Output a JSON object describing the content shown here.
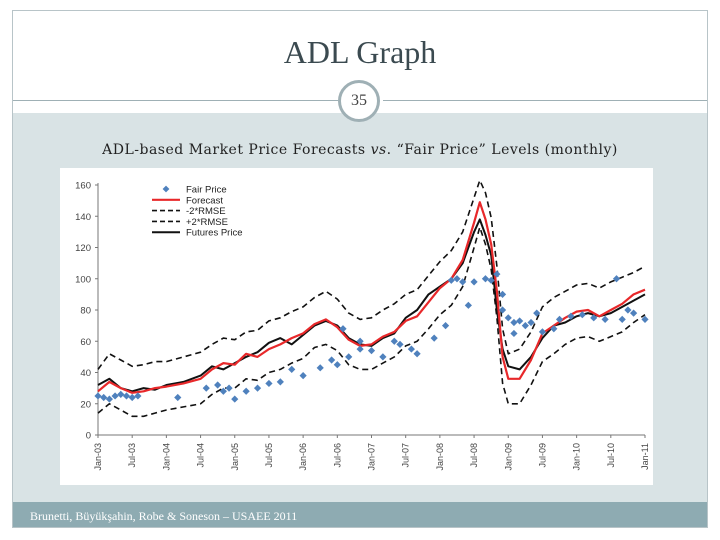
{
  "slide": {
    "title": "ADL Graph",
    "page_number": "35",
    "subtitle_prefix": "ADL-based Market Price Forecasts ",
    "subtitle_vs": "vs",
    "subtitle_suffix": ". “Fair Price” Levels (monthly)",
    "footer": "Brunetti, Büyükşahin, Robe & Soneson – USAEE 2011"
  },
  "colors": {
    "forecast": "#e8282a",
    "rmse": "#111111",
    "futures": "#111111",
    "fair": "#4f81bd",
    "band": "#d9e3e5",
    "footer": "#8eabb2"
  },
  "chart_data": {
    "type": "line",
    "ylim": [
      0,
      160
    ],
    "yticks": [
      "0",
      "20",
      "40",
      "60",
      "80",
      "100",
      "120",
      "140",
      "160"
    ],
    "x_start": "Jan-03",
    "x_end": "Jan-11",
    "xticks": [
      "Jan-03",
      "Jul-03",
      "Jan-04",
      "Jul-04",
      "Jan-05",
      "Jul-05",
      "Jan-06",
      "Jul-06",
      "Jan-07",
      "Jul-07",
      "Jan-08",
      "Jul-08",
      "Jan-09",
      "Jul-09",
      "Jan-10",
      "Jul-10",
      "Jan-11"
    ],
    "legend": [
      "Fair Price",
      "Forecast",
      "-2*RMSE",
      "+2*RMSE",
      "Futures Price"
    ],
    "legend_position": "top-left",
    "futures": [
      [
        0,
        32
      ],
      [
        2,
        36
      ],
      [
        4,
        30
      ],
      [
        6,
        28
      ],
      [
        8,
        30
      ],
      [
        10,
        29
      ],
      [
        12,
        32
      ],
      [
        15,
        34
      ],
      [
        18,
        38
      ],
      [
        20,
        44
      ],
      [
        22,
        42
      ],
      [
        24,
        46
      ],
      [
        26,
        50
      ],
      [
        28,
        53
      ],
      [
        30,
        59
      ],
      [
        32,
        62
      ],
      [
        34,
        58
      ],
      [
        36,
        64
      ],
      [
        38,
        70
      ],
      [
        40,
        73
      ],
      [
        42,
        70
      ],
      [
        44,
        62
      ],
      [
        46,
        58
      ],
      [
        48,
        57
      ],
      [
        50,
        62
      ],
      [
        52,
        65
      ],
      [
        54,
        75
      ],
      [
        56,
        80
      ],
      [
        58,
        90
      ],
      [
        60,
        95
      ],
      [
        62,
        100
      ],
      [
        64,
        110
      ],
      [
        66,
        130
      ],
      [
        67,
        138
      ],
      [
        68,
        128
      ],
      [
        69,
        115
      ],
      [
        70,
        80
      ],
      [
        71,
        55
      ],
      [
        72,
        44
      ],
      [
        74,
        42
      ],
      [
        76,
        50
      ],
      [
        78,
        62
      ],
      [
        80,
        70
      ],
      [
        82,
        72
      ],
      [
        84,
        76
      ],
      [
        86,
        78
      ],
      [
        88,
        76
      ],
      [
        90,
        78
      ],
      [
        92,
        82
      ],
      [
        94,
        86
      ],
      [
        96,
        90
      ]
    ],
    "forecast": [
      [
        0,
        28
      ],
      [
        2,
        34
      ],
      [
        4,
        30
      ],
      [
        6,
        27
      ],
      [
        8,
        28
      ],
      [
        10,
        30
      ],
      [
        12,
        31
      ],
      [
        15,
        33
      ],
      [
        18,
        36
      ],
      [
        20,
        42
      ],
      [
        22,
        46
      ],
      [
        24,
        45
      ],
      [
        26,
        52
      ],
      [
        28,
        50
      ],
      [
        30,
        55
      ],
      [
        32,
        58
      ],
      [
        34,
        62
      ],
      [
        36,
        65
      ],
      [
        38,
        71
      ],
      [
        40,
        74
      ],
      [
        42,
        69
      ],
      [
        44,
        61
      ],
      [
        46,
        57
      ],
      [
        48,
        58
      ],
      [
        50,
        63
      ],
      [
        52,
        66
      ],
      [
        54,
        73
      ],
      [
        56,
        76
      ],
      [
        58,
        85
      ],
      [
        60,
        94
      ],
      [
        62,
        100
      ],
      [
        64,
        112
      ],
      [
        66,
        136
      ],
      [
        67,
        149
      ],
      [
        68,
        138
      ],
      [
        69,
        122
      ],
      [
        70,
        92
      ],
      [
        71,
        50
      ],
      [
        72,
        36
      ],
      [
        74,
        36
      ],
      [
        76,
        48
      ],
      [
        78,
        65
      ],
      [
        80,
        70
      ],
      [
        82,
        75
      ],
      [
        84,
        79
      ],
      [
        86,
        80
      ],
      [
        88,
        76
      ],
      [
        90,
        80
      ],
      [
        92,
        84
      ],
      [
        94,
        90
      ],
      [
        96,
        93
      ]
    ],
    "rmse_upper": [
      [
        0,
        42
      ],
      [
        2,
        52
      ],
      [
        4,
        48
      ],
      [
        6,
        44
      ],
      [
        8,
        45
      ],
      [
        10,
        47
      ],
      [
        12,
        47
      ],
      [
        15,
        50
      ],
      [
        18,
        53
      ],
      [
        20,
        58
      ],
      [
        22,
        62
      ],
      [
        24,
        61
      ],
      [
        26,
        66
      ],
      [
        28,
        67
      ],
      [
        30,
        73
      ],
      [
        32,
        75
      ],
      [
        34,
        79
      ],
      [
        36,
        82
      ],
      [
        38,
        88
      ],
      [
        40,
        92
      ],
      [
        42,
        87
      ],
      [
        44,
        78
      ],
      [
        46,
        74
      ],
      [
        48,
        75
      ],
      [
        50,
        80
      ],
      [
        52,
        84
      ],
      [
        54,
        90
      ],
      [
        56,
        93
      ],
      [
        58,
        102
      ],
      [
        60,
        111
      ],
      [
        62,
        118
      ],
      [
        64,
        130
      ],
      [
        66,
        152
      ],
      [
        67,
        163
      ],
      [
        68,
        155
      ],
      [
        69,
        139
      ],
      [
        70,
        108
      ],
      [
        71,
        68
      ],
      [
        72,
        52
      ],
      [
        74,
        55
      ],
      [
        76,
        66
      ],
      [
        78,
        82
      ],
      [
        80,
        88
      ],
      [
        82,
        92
      ],
      [
        84,
        96
      ],
      [
        86,
        97
      ],
      [
        88,
        94
      ],
      [
        90,
        98
      ],
      [
        92,
        101
      ],
      [
        94,
        104
      ],
      [
        96,
        108
      ]
    ],
    "rmse_lower": [
      [
        0,
        14
      ],
      [
        2,
        20
      ],
      [
        4,
        16
      ],
      [
        6,
        12
      ],
      [
        8,
        12
      ],
      [
        10,
        14
      ],
      [
        12,
        16
      ],
      [
        15,
        18
      ],
      [
        18,
        20
      ],
      [
        20,
        26
      ],
      [
        22,
        30
      ],
      [
        24,
        30
      ],
      [
        26,
        36
      ],
      [
        28,
        35
      ],
      [
        30,
        40
      ],
      [
        32,
        42
      ],
      [
        34,
        46
      ],
      [
        36,
        49
      ],
      [
        38,
        56
      ],
      [
        40,
        58
      ],
      [
        42,
        54
      ],
      [
        44,
        45
      ],
      [
        46,
        42
      ],
      [
        48,
        42
      ],
      [
        50,
        46
      ],
      [
        52,
        50
      ],
      [
        54,
        57
      ],
      [
        56,
        60
      ],
      [
        58,
        68
      ],
      [
        60,
        77
      ],
      [
        62,
        83
      ],
      [
        64,
        95
      ],
      [
        66,
        120
      ],
      [
        67,
        133
      ],
      [
        68,
        122
      ],
      [
        69,
        106
      ],
      [
        70,
        75
      ],
      [
        71,
        33
      ],
      [
        72,
        20
      ],
      [
        74,
        20
      ],
      [
        76,
        32
      ],
      [
        78,
        47
      ],
      [
        80,
        52
      ],
      [
        82,
        58
      ],
      [
        84,
        62
      ],
      [
        86,
        63
      ],
      [
        88,
        60
      ],
      [
        90,
        63
      ],
      [
        92,
        66
      ],
      [
        94,
        72
      ],
      [
        96,
        77
      ]
    ],
    "fair_price": [
      [
        0,
        25
      ],
      [
        1,
        24
      ],
      [
        2,
        23
      ],
      [
        3,
        25
      ],
      [
        4,
        26
      ],
      [
        5,
        25
      ],
      [
        6,
        24
      ],
      [
        7,
        25
      ],
      [
        14,
        24
      ],
      [
        19,
        30
      ],
      [
        21,
        32
      ],
      [
        22,
        28
      ],
      [
        23,
        30
      ],
      [
        24,
        23
      ],
      [
        26,
        28
      ],
      [
        28,
        30
      ],
      [
        30,
        33
      ],
      [
        32,
        34
      ],
      [
        34,
        42
      ],
      [
        36,
        38
      ],
      [
        39,
        43
      ],
      [
        41,
        48
      ],
      [
        42,
        45
      ],
      [
        43,
        68
      ],
      [
        44,
        50
      ],
      [
        46,
        55
      ],
      [
        46,
        60
      ],
      [
        48,
        54
      ],
      [
        50,
        50
      ],
      [
        52,
        60
      ],
      [
        53,
        58
      ],
      [
        55,
        55
      ],
      [
        56,
        52
      ],
      [
        59,
        62
      ],
      [
        61,
        70
      ],
      [
        62,
        99
      ],
      [
        63,
        100
      ],
      [
        64,
        98
      ],
      [
        65,
        83
      ],
      [
        66,
        98
      ],
      [
        68,
        100
      ],
      [
        69,
        99
      ],
      [
        70,
        103
      ],
      [
        71,
        90
      ],
      [
        71,
        80
      ],
      [
        72,
        75
      ],
      [
        73,
        72
      ],
      [
        73,
        65
      ],
      [
        74,
        73
      ],
      [
        75,
        70
      ],
      [
        76,
        72
      ],
      [
        77,
        78
      ],
      [
        78,
        66
      ],
      [
        80,
        68
      ],
      [
        81,
        74
      ],
      [
        83,
        76
      ],
      [
        85,
        77
      ],
      [
        87,
        75
      ],
      [
        89,
        74
      ],
      [
        91,
        100
      ],
      [
        92,
        74
      ],
      [
        93,
        80
      ],
      [
        94,
        78
      ],
      [
        96,
        74
      ]
    ]
  }
}
